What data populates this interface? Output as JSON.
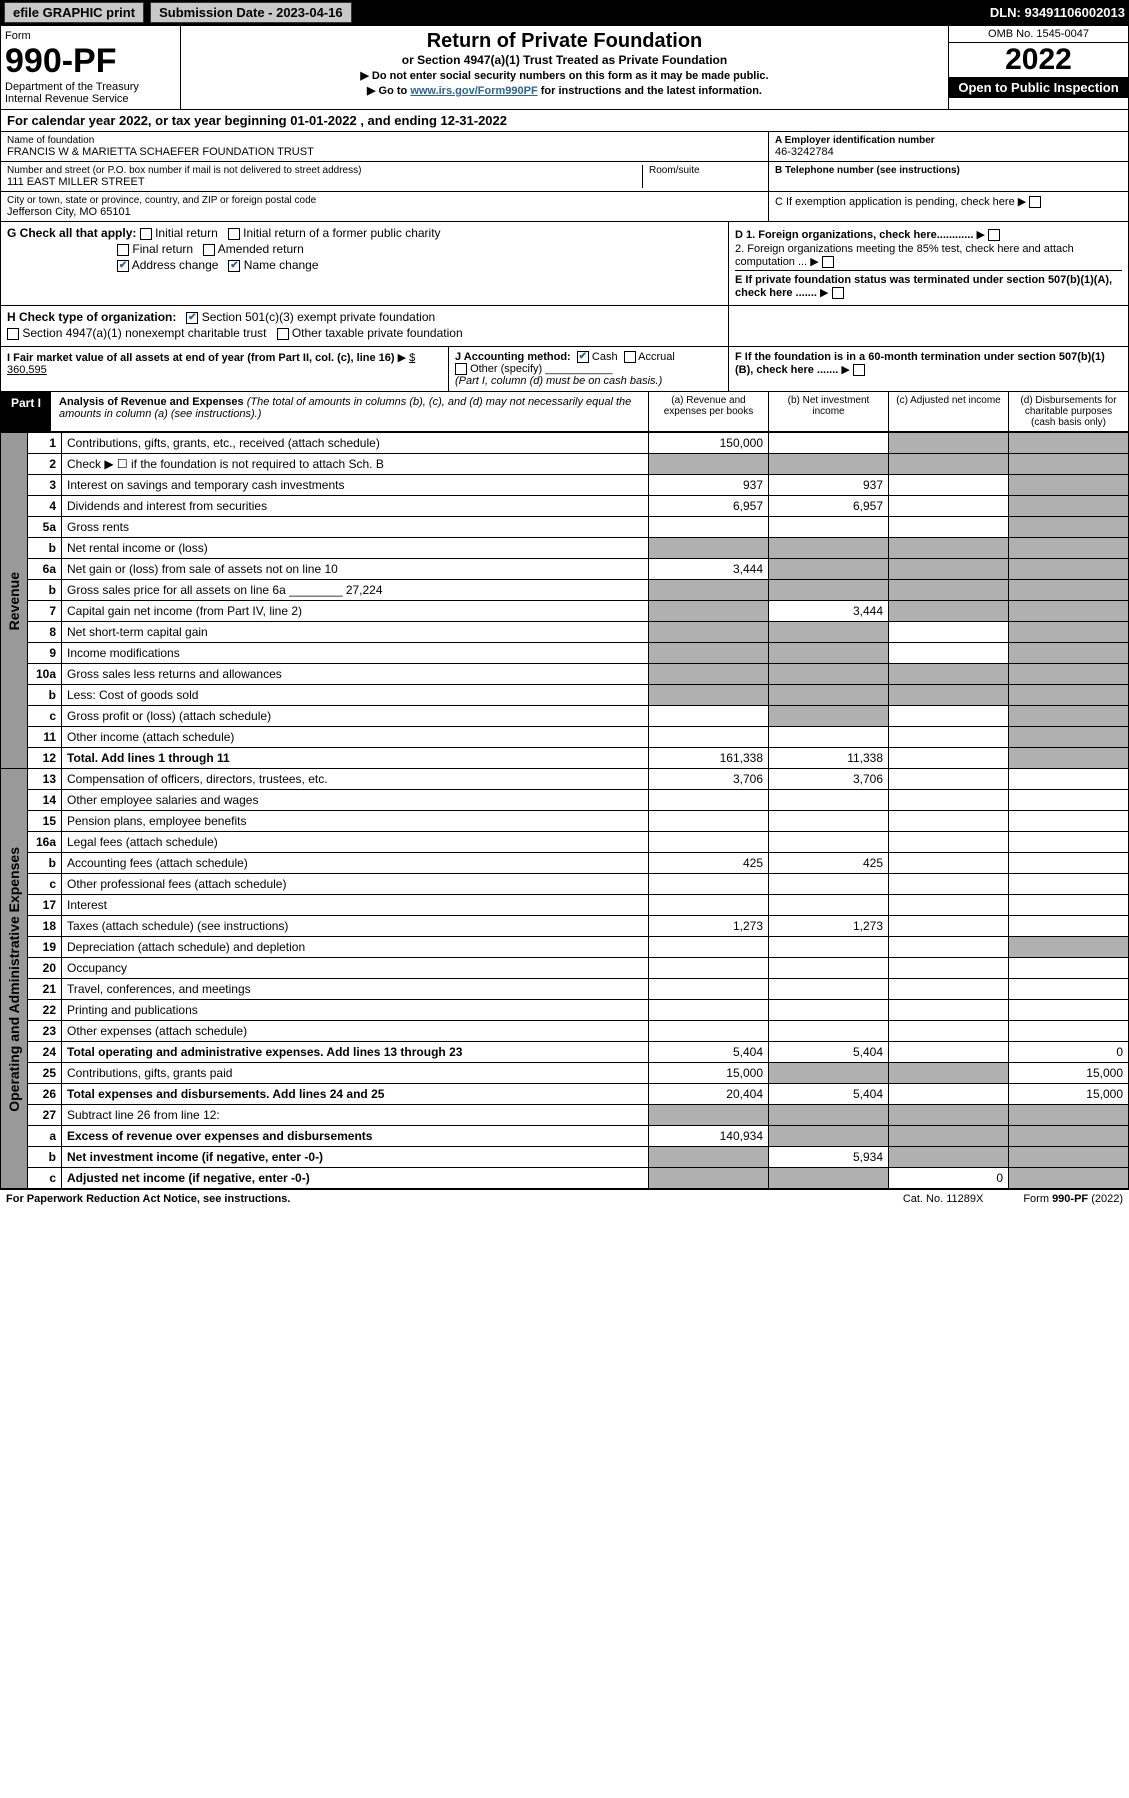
{
  "topbar": {
    "efile": "efile GRAPHIC print",
    "submission": "Submission Date - 2023-04-16",
    "dln": "DLN: 93491106002013"
  },
  "header": {
    "form_label": "Form",
    "form_number": "990-PF",
    "dept": "Department of the Treasury",
    "irs": "Internal Revenue Service",
    "title": "Return of Private Foundation",
    "subtitle": "or Section 4947(a)(1) Trust Treated as Private Foundation",
    "instr1": "▶ Do not enter social security numbers on this form as it may be made public.",
    "instr2_pre": "▶ Go to ",
    "instr2_link": "www.irs.gov/Form990PF",
    "instr2_post": " for instructions and the latest information.",
    "omb": "OMB No. 1545-0047",
    "year": "2022",
    "open": "Open to Public Inspection"
  },
  "calyear": "For calendar year 2022, or tax year beginning 01-01-2022            , and ending 12-31-2022",
  "name_block": {
    "name_label": "Name of foundation",
    "name": "FRANCIS W & MARIETTA SCHAEFER FOUNDATION TRUST",
    "addr_label": "Number and street (or P.O. box number if mail is not delivered to street address)",
    "addr": "111 EAST MILLER STREET",
    "room_label": "Room/suite",
    "city_label": "City or town, state or province, country, and ZIP or foreign postal code",
    "city": "Jefferson City, MO  65101",
    "ein_label": "A Employer identification number",
    "ein": "46-3242784",
    "phone_label": "B Telephone number (see instructions)",
    "c_label": "C If exemption application is pending, check here"
  },
  "checks": {
    "g_label": "G Check all that apply:",
    "initial": "Initial return",
    "initial_former": "Initial return of a former public charity",
    "final": "Final return",
    "amended": "Amended return",
    "addr_change": "Address change",
    "name_change": "Name change",
    "d1": "D 1. Foreign organizations, check here............",
    "d2": "2. Foreign organizations meeting the 85% test, check here and attach computation ...",
    "e": "E If private foundation status was terminated under section 507(b)(1)(A), check here .......",
    "h_label": "H Check type of organization:",
    "h_501c3": "Section 501(c)(3) exempt private foundation",
    "h_4947": "Section 4947(a)(1) nonexempt charitable trust",
    "h_other_tax": "Other taxable private foundation",
    "i_label": "I Fair market value of all assets at end of year (from Part II, col. (c), line 16)",
    "i_val": "$  360,595",
    "j_label": "J Accounting method:",
    "j_cash": "Cash",
    "j_accrual": "Accrual",
    "j_other": "Other (specify)",
    "j_note": "(Part I, column (d) must be on cash basis.)",
    "f_label": "F If the foundation is in a 60-month termination under section 507(b)(1)(B), check here ......."
  },
  "part1": {
    "part": "Part I",
    "title": "Analysis of Revenue and Expenses",
    "title_note": "(The total of amounts in columns (b), (c), and (d) may not necessarily equal the amounts in column (a) (see instructions).)",
    "col_a": "(a)   Revenue and expenses per books",
    "col_b": "(b)   Net investment income",
    "col_c": "(c)   Adjusted net income",
    "col_d": "(d)   Disbursements for charitable purposes (cash basis only)"
  },
  "side_labels": {
    "revenue": "Revenue",
    "expenses": "Operating and Administrative Expenses"
  },
  "rows": [
    {
      "n": "1",
      "desc": "Contributions, gifts, grants, etc., received (attach schedule)",
      "a": "150,000",
      "b": "",
      "c": "grey",
      "d": "grey"
    },
    {
      "n": "2",
      "desc": "Check ▶ ☐ if the foundation is not required to attach Sch. B",
      "a": "grey",
      "b": "grey",
      "c": "grey",
      "d": "grey"
    },
    {
      "n": "3",
      "desc": "Interest on savings and temporary cash investments",
      "a": "937",
      "b": "937",
      "c": "",
      "d": "grey"
    },
    {
      "n": "4",
      "desc": "Dividends and interest from securities",
      "a": "6,957",
      "b": "6,957",
      "c": "",
      "d": "grey"
    },
    {
      "n": "5a",
      "desc": "Gross rents",
      "a": "",
      "b": "",
      "c": "",
      "d": "grey"
    },
    {
      "n": "b",
      "desc": "Net rental income or (loss)",
      "a": "grey",
      "b": "grey",
      "c": "grey",
      "d": "grey"
    },
    {
      "n": "6a",
      "desc": "Net gain or (loss) from sale of assets not on line 10",
      "a": "3,444",
      "b": "grey",
      "c": "grey",
      "d": "grey"
    },
    {
      "n": "b",
      "desc": "Gross sales price for all assets on line 6a ________ 27,224",
      "a": "grey",
      "b": "grey",
      "c": "grey",
      "d": "grey"
    },
    {
      "n": "7",
      "desc": "Capital gain net income (from Part IV, line 2)",
      "a": "grey",
      "b": "3,444",
      "c": "grey",
      "d": "grey"
    },
    {
      "n": "8",
      "desc": "Net short-term capital gain",
      "a": "grey",
      "b": "grey",
      "c": "",
      "d": "grey"
    },
    {
      "n": "9",
      "desc": "Income modifications",
      "a": "grey",
      "b": "grey",
      "c": "",
      "d": "grey"
    },
    {
      "n": "10a",
      "desc": "Gross sales less returns and allowances",
      "a": "grey",
      "b": "grey",
      "c": "grey",
      "d": "grey"
    },
    {
      "n": "b",
      "desc": "Less: Cost of goods sold",
      "a": "grey",
      "b": "grey",
      "c": "grey",
      "d": "grey"
    },
    {
      "n": "c",
      "desc": "Gross profit or (loss) (attach schedule)",
      "a": "",
      "b": "grey",
      "c": "",
      "d": "grey"
    },
    {
      "n": "11",
      "desc": "Other income (attach schedule)",
      "a": "",
      "b": "",
      "c": "",
      "d": "grey"
    },
    {
      "n": "12",
      "desc": "Total. Add lines 1 through 11",
      "a": "161,338",
      "b": "11,338",
      "c": "",
      "d": "grey",
      "bold": true
    },
    {
      "n": "13",
      "desc": "Compensation of officers, directors, trustees, etc.",
      "a": "3,706",
      "b": "3,706",
      "c": "",
      "d": ""
    },
    {
      "n": "14",
      "desc": "Other employee salaries and wages",
      "a": "",
      "b": "",
      "c": "",
      "d": ""
    },
    {
      "n": "15",
      "desc": "Pension plans, employee benefits",
      "a": "",
      "b": "",
      "c": "",
      "d": ""
    },
    {
      "n": "16a",
      "desc": "Legal fees (attach schedule)",
      "a": "",
      "b": "",
      "c": "",
      "d": ""
    },
    {
      "n": "b",
      "desc": "Accounting fees (attach schedule)",
      "a": "425",
      "b": "425",
      "c": "",
      "d": ""
    },
    {
      "n": "c",
      "desc": "Other professional fees (attach schedule)",
      "a": "",
      "b": "",
      "c": "",
      "d": ""
    },
    {
      "n": "17",
      "desc": "Interest",
      "a": "",
      "b": "",
      "c": "",
      "d": ""
    },
    {
      "n": "18",
      "desc": "Taxes (attach schedule) (see instructions)",
      "a": "1,273",
      "b": "1,273",
      "c": "",
      "d": ""
    },
    {
      "n": "19",
      "desc": "Depreciation (attach schedule) and depletion",
      "a": "",
      "b": "",
      "c": "",
      "d": "grey"
    },
    {
      "n": "20",
      "desc": "Occupancy",
      "a": "",
      "b": "",
      "c": "",
      "d": ""
    },
    {
      "n": "21",
      "desc": "Travel, conferences, and meetings",
      "a": "",
      "b": "",
      "c": "",
      "d": ""
    },
    {
      "n": "22",
      "desc": "Printing and publications",
      "a": "",
      "b": "",
      "c": "",
      "d": ""
    },
    {
      "n": "23",
      "desc": "Other expenses (attach schedule)",
      "a": "",
      "b": "",
      "c": "",
      "d": ""
    },
    {
      "n": "24",
      "desc": "Total operating and administrative expenses. Add lines 13 through 23",
      "a": "5,404",
      "b": "5,404",
      "c": "",
      "d": "0",
      "bold": true
    },
    {
      "n": "25",
      "desc": "Contributions, gifts, grants paid",
      "a": "15,000",
      "b": "grey",
      "c": "grey",
      "d": "15,000"
    },
    {
      "n": "26",
      "desc": "Total expenses and disbursements. Add lines 24 and 25",
      "a": "20,404",
      "b": "5,404",
      "c": "",
      "d": "15,000",
      "bold": true
    },
    {
      "n": "27",
      "desc": "Subtract line 26 from line 12:",
      "a": "grey",
      "b": "grey",
      "c": "grey",
      "d": "grey"
    },
    {
      "n": "a",
      "desc": "Excess of revenue over expenses and disbursements",
      "a": "140,934",
      "b": "grey",
      "c": "grey",
      "d": "grey",
      "bold": true
    },
    {
      "n": "b",
      "desc": "Net investment income (if negative, enter -0-)",
      "a": "grey",
      "b": "5,934",
      "c": "grey",
      "d": "grey",
      "bold": true
    },
    {
      "n": "c",
      "desc": "Adjusted net income (if negative, enter -0-)",
      "a": "grey",
      "b": "grey",
      "c": "0",
      "d": "grey",
      "bold": true
    }
  ],
  "footer": {
    "left": "For Paperwork Reduction Act Notice, see instructions.",
    "mid": "Cat. No. 11289X",
    "right": "Form 990-PF (2022)"
  }
}
